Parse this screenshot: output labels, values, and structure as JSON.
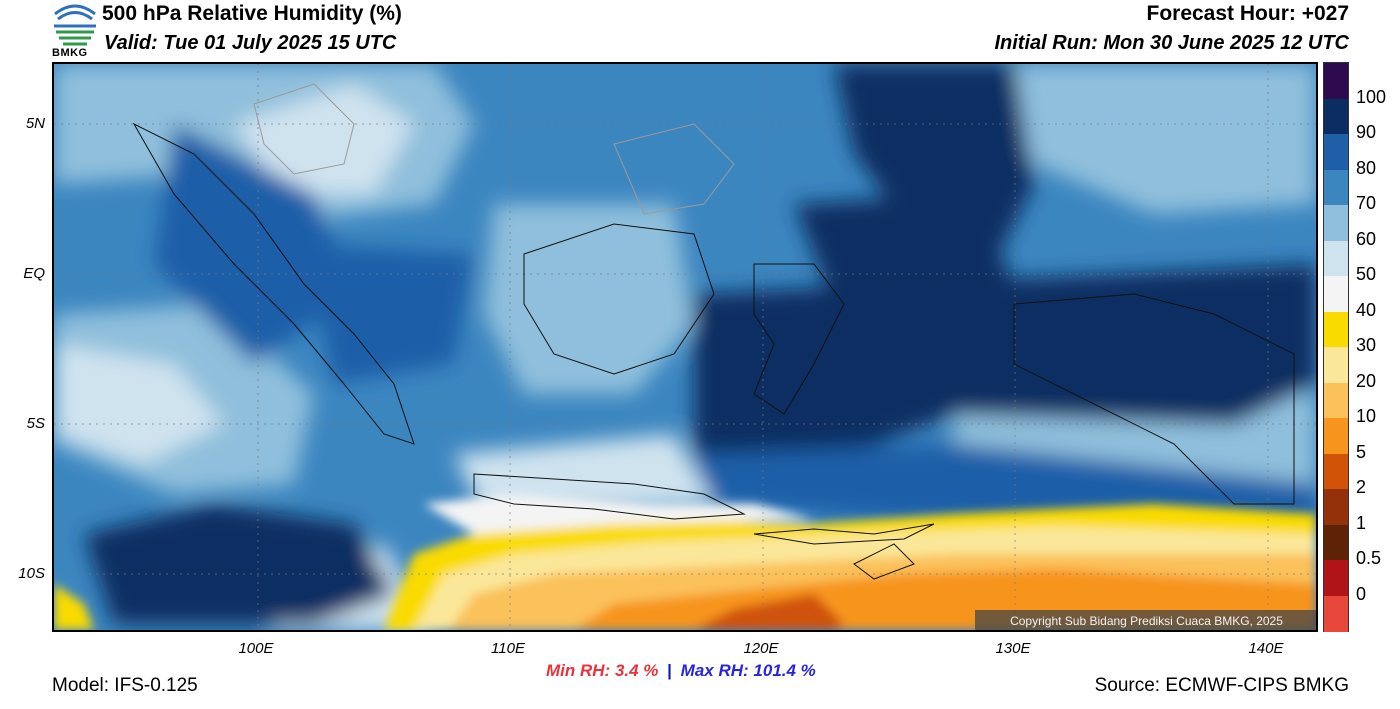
{
  "header": {
    "title": "500 hPa Relative Humidity (%)",
    "valid": "Valid: Tue 01 July 2025 15 UTC",
    "forecast_hour": "Forecast Hour: +027",
    "initial_run": "Initial Run: Mon 30 June 2025 12 UTC",
    "logo_text": "BMKG"
  },
  "map": {
    "lat_labels": [
      "5N",
      "EQ",
      "5S",
      "10S"
    ],
    "lon_labels": [
      "100E",
      "110E",
      "120E",
      "130E",
      "140E"
    ],
    "copyright": "Copyright Sub Bidang Prediksi Cuaca BMKG, 2025"
  },
  "colorbar": {
    "labels": [
      "100",
      "90",
      "80",
      "70",
      "60",
      "50",
      "40",
      "30",
      "20",
      "10",
      "5",
      "2",
      "1",
      "0.5",
      "0"
    ],
    "colors": [
      "#2e0a4f",
      "#0c2d62",
      "#1f5fa8",
      "#3c86c0",
      "#8fbfdc",
      "#cfe3ef",
      "#f4f4f4",
      "#fadb00",
      "#fbe79a",
      "#fbc15a",
      "#f7941d",
      "#d05307",
      "#93310b",
      "#5e2207",
      "#b01418",
      "#e8473c"
    ]
  },
  "stats": {
    "min_label": "Min RH:",
    "min_value": "3.4 %",
    "separator": "|",
    "max_label": "Max RH:",
    "max_value": "101.4 %"
  },
  "footer": {
    "model": "Model: IFS-0.125",
    "source": "Source: ECMWF-CIPS BMKG"
  }
}
